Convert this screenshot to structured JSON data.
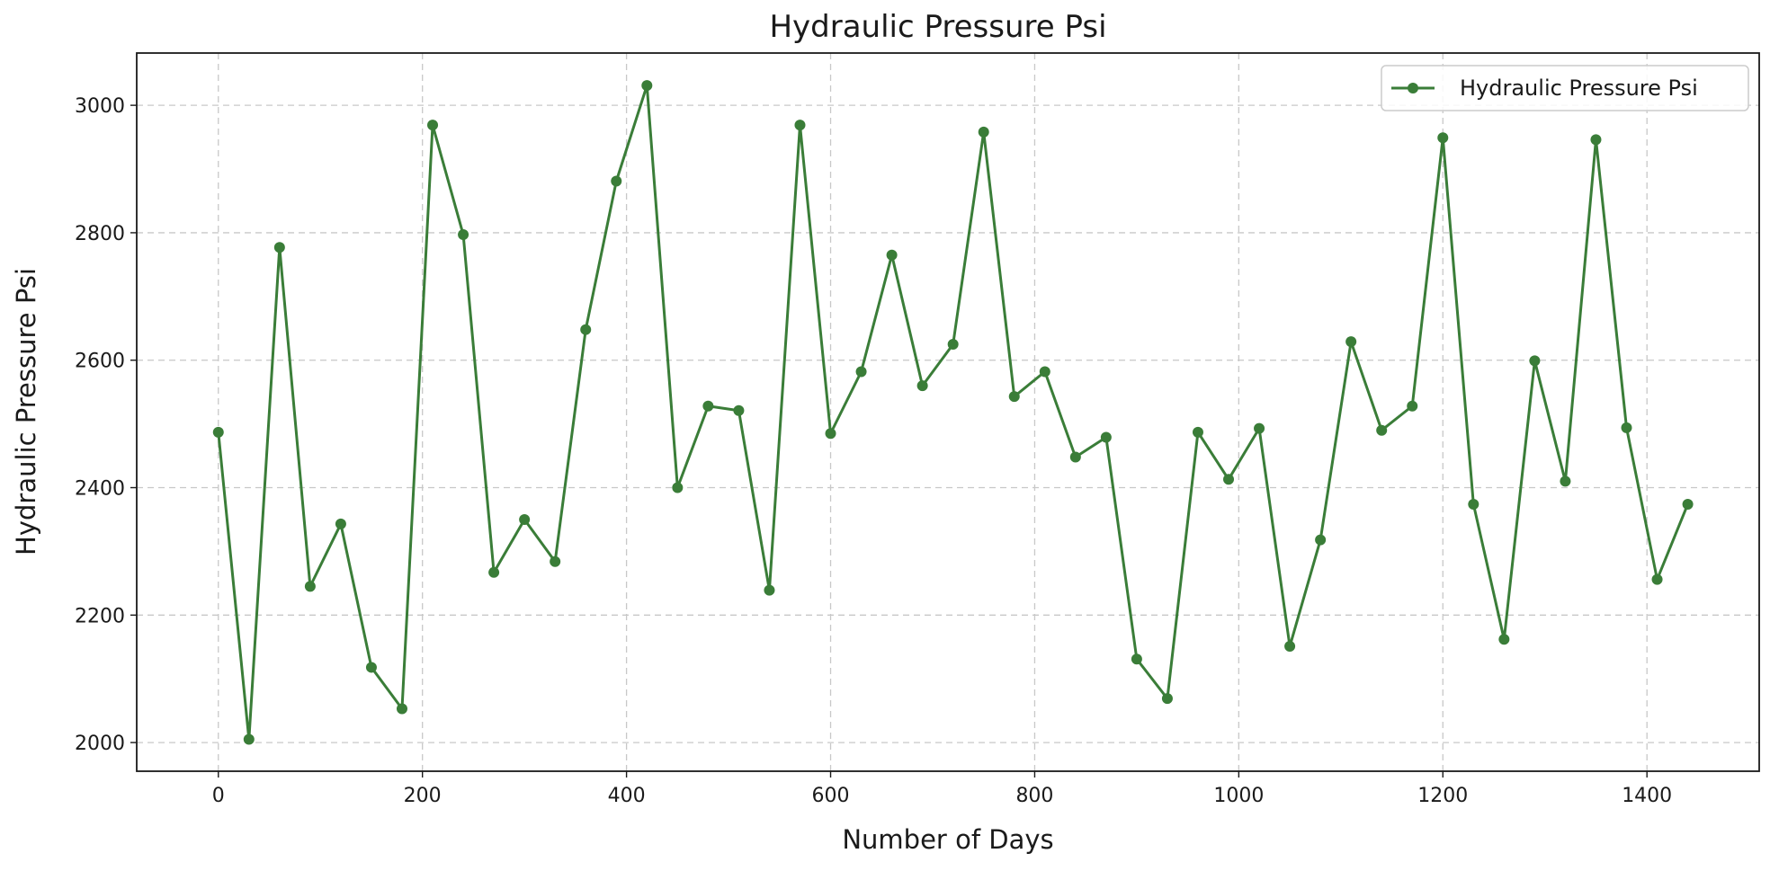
{
  "chart_data": {
    "type": "line",
    "title": "Hydraulic Pressure Psi",
    "xlabel": "Number of Days",
    "ylabel": "Hydraulic Pressure Psi",
    "xlim": [
      -80,
      1510
    ],
    "ylim": [
      1955,
      3082
    ],
    "xticks": [
      0,
      200,
      400,
      600,
      800,
      1000,
      1200,
      1400
    ],
    "yticks": [
      2000,
      2200,
      2400,
      2600,
      2800,
      3000
    ],
    "grid": true,
    "legend_position": "top-right",
    "series": [
      {
        "name": "Hydraulic Pressure Psi",
        "color": "#3a7d38",
        "marker": "circle",
        "x": [
          0,
          30,
          60,
          90,
          120,
          150,
          180,
          210,
          240,
          270,
          300,
          330,
          360,
          390,
          420,
          450,
          480,
          510,
          540,
          570,
          600,
          630,
          660,
          690,
          720,
          750,
          780,
          810,
          840,
          870,
          900,
          930,
          960,
          990,
          1020,
          1050,
          1080,
          1110,
          1140,
          1170,
          1200,
          1230,
          1260,
          1290,
          1320,
          1350,
          1380,
          1410,
          1440
        ],
        "values": [
          2487,
          2005,
          2777,
          2245,
          2343,
          2118,
          2053,
          2969,
          2797,
          2267,
          2350,
          2284,
          2648,
          2881,
          3031,
          2400,
          2528,
          2521,
          2239,
          2969,
          2485,
          2582,
          2765,
          2560,
          2625,
          2958,
          2543,
          2582,
          2448,
          2479,
          2131,
          2069,
          2487,
          2413,
          2493,
          2151,
          2318,
          2629,
          2490,
          2528,
          2949,
          2374,
          2162,
          2599,
          2410,
          2946,
          2494,
          2256,
          2374
        ]
      }
    ]
  }
}
